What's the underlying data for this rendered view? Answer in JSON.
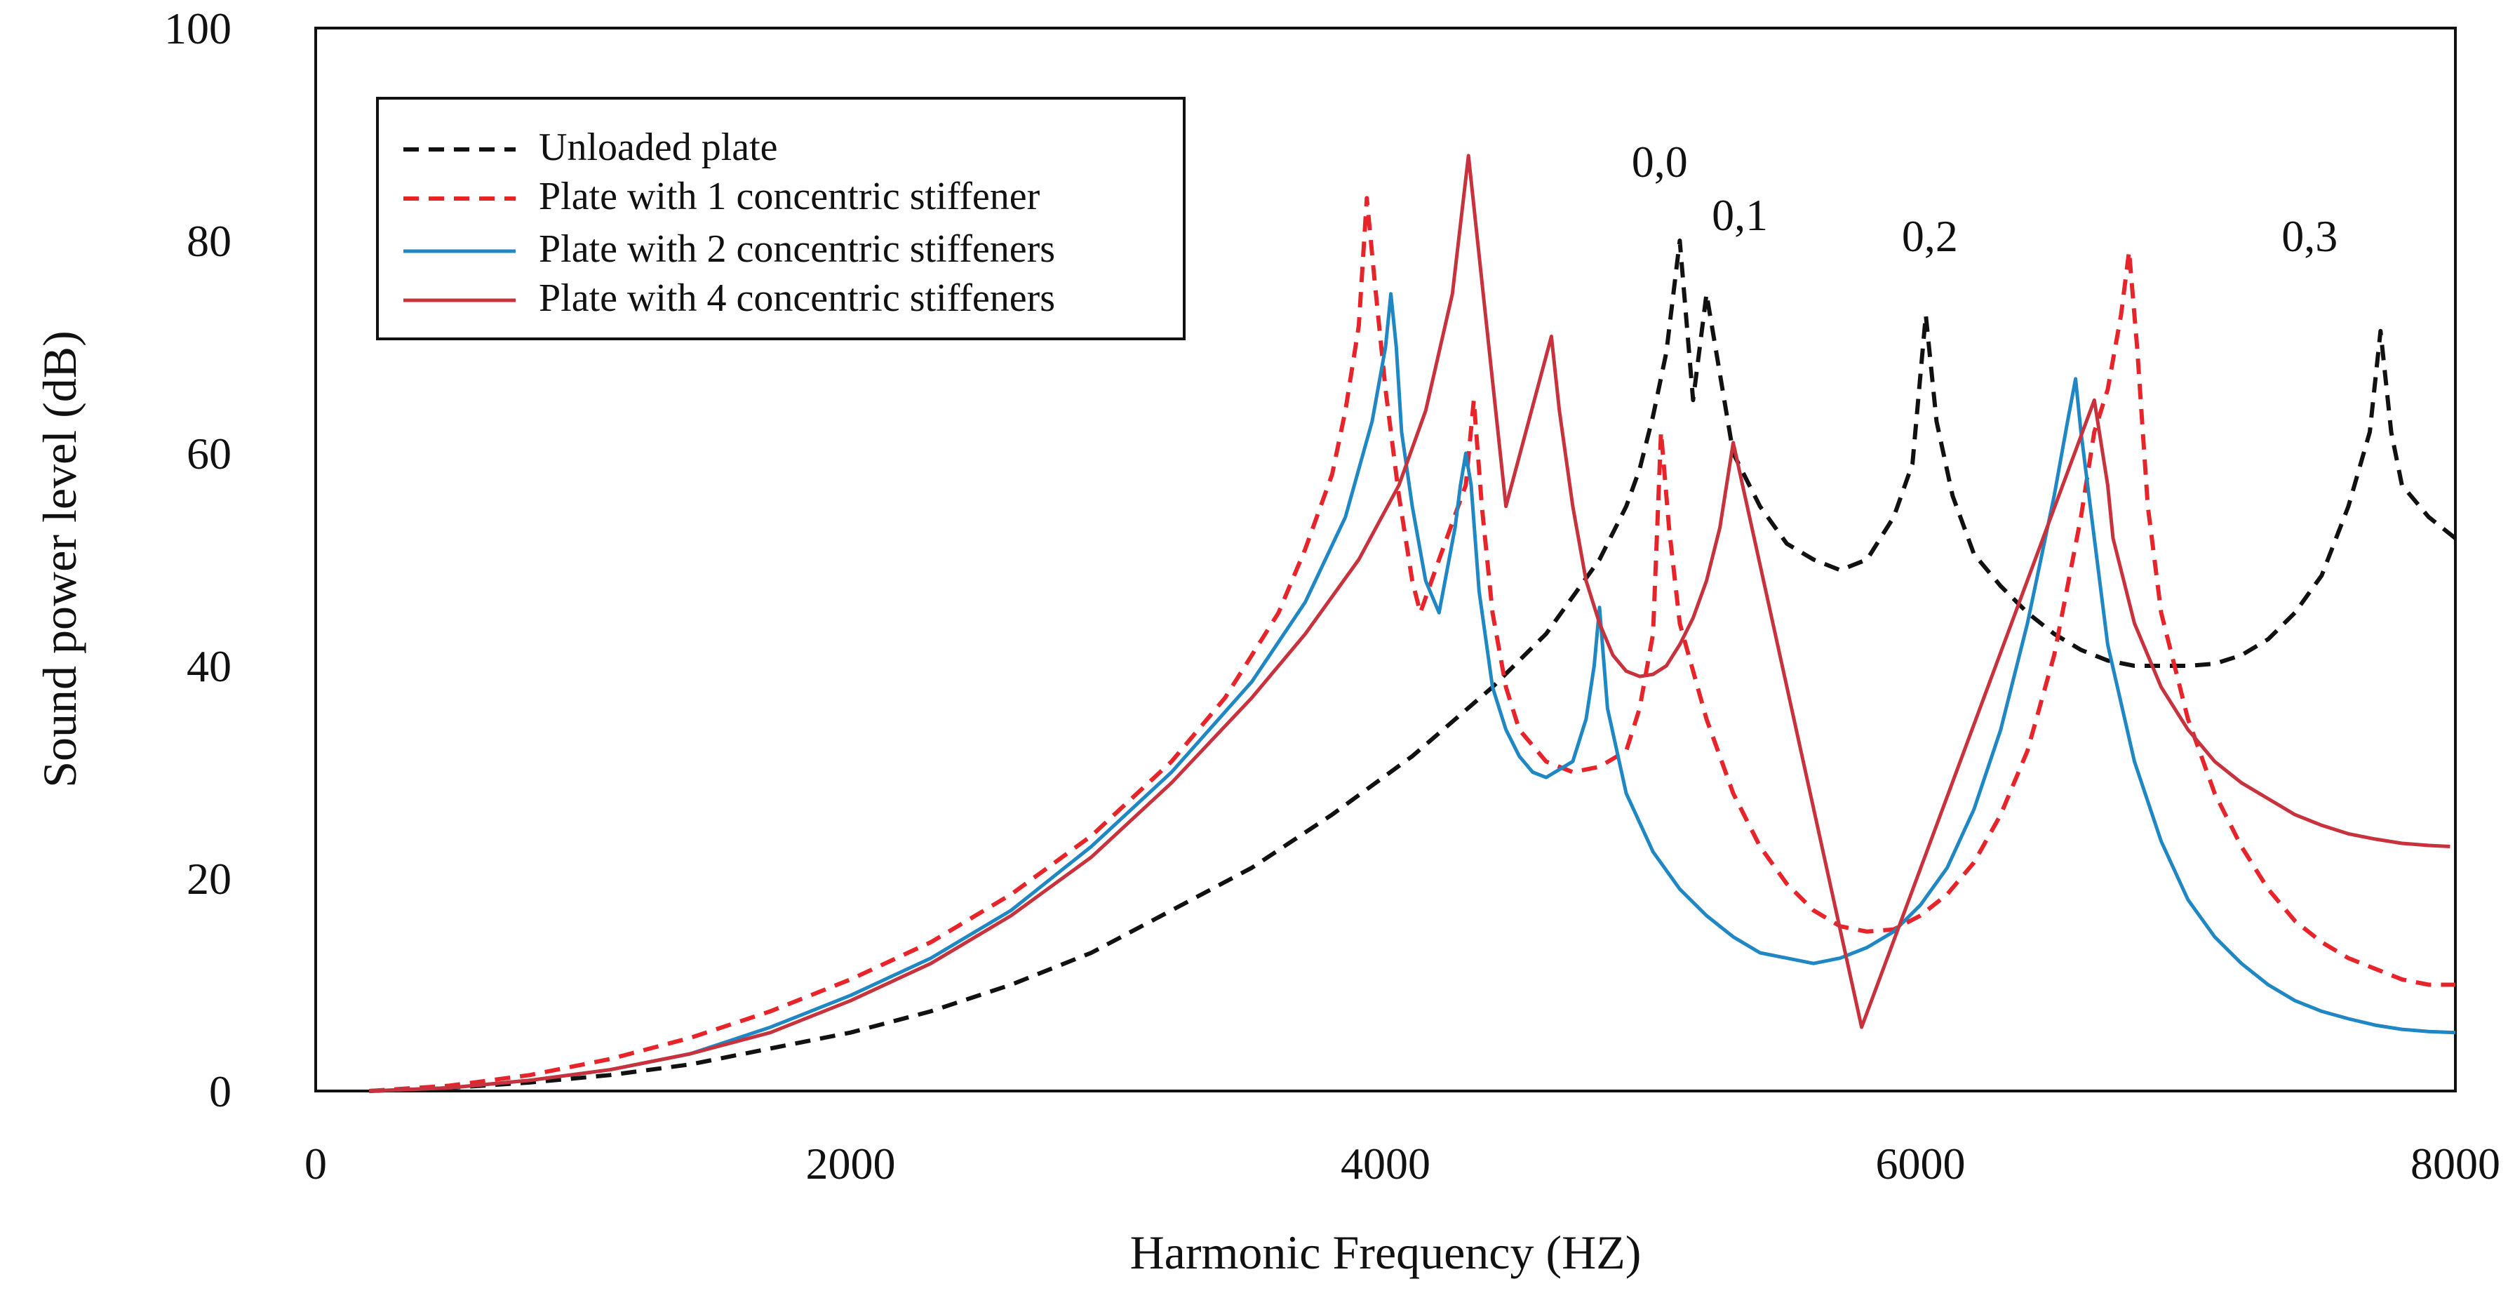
{
  "chart_data": {
    "type": "line",
    "title": "",
    "xlabel": "Harmonic Frequency (HZ)",
    "ylabel": "Sound power level (dB)",
    "xlim": [
      0,
      8000
    ],
    "ylim": [
      0,
      100
    ],
    "xticks": [
      0,
      2000,
      4000,
      6000,
      8000
    ],
    "yticks": [
      0,
      20,
      40,
      60,
      80,
      100
    ],
    "xtick_labels": [
      "0",
      "2000",
      "4000",
      "6000",
      "8000"
    ],
    "ytick_labels": [
      "0",
      "20",
      "40",
      "60",
      "80",
      "100"
    ],
    "grid": false,
    "legend_position": "top-left",
    "series": [
      {
        "name": "Unloaded plate",
        "color": "#111111",
        "style": "dashed",
        "x": [
          200,
          500,
          800,
          1100,
          1400,
          1700,
          2000,
          2300,
          2600,
          2900,
          3200,
          3500,
          3800,
          4100,
          4400,
          4600,
          4700,
          4800,
          4900,
          4950,
          5000,
          5050,
          5100,
          5150,
          5200,
          5300,
          5400,
          5500,
          5600,
          5700,
          5800,
          5900,
          5970,
          6020,
          6060,
          6120,
          6200,
          6300,
          6400,
          6500,
          6600,
          6700,
          6800,
          6900,
          7000,
          7100,
          7200,
          7300,
          7400,
          7500,
          7600,
          7680,
          7720,
          7760,
          7800,
          7900,
          8000
        ],
        "values": [
          0,
          0.3,
          0.8,
          1.5,
          2.5,
          4,
          5.5,
          7.5,
          10,
          13,
          17,
          21,
          26,
          31.5,
          38,
          43,
          46.5,
          50,
          55,
          58.5,
          63.5,
          69.5,
          80,
          65,
          75,
          60,
          55,
          51.5,
          50,
          49,
          50,
          54,
          59,
          73,
          63,
          56,
          50.5,
          47.5,
          45,
          43,
          41.5,
          40.5,
          40,
          40,
          40,
          40.2,
          41,
          42.5,
          45,
          48.5,
          55,
          62,
          71.5,
          62,
          57,
          54,
          52
        ]
      },
      {
        "name": "Plate with 1 concentric stiffener",
        "color": "#e8242b",
        "style": "dashed",
        "x": [
          200,
          500,
          800,
          1100,
          1400,
          1700,
          2000,
          2300,
          2600,
          2900,
          3200,
          3400,
          3600,
          3700,
          3800,
          3850,
          3900,
          3930,
          3960,
          4000,
          4050,
          4100,
          4130,
          4200,
          4300,
          4330,
          4360,
          4400,
          4450,
          4500,
          4600,
          4700,
          4800,
          4900,
          4950,
          5000,
          5030,
          5060,
          5100,
          5200,
          5300,
          5400,
          5500,
          5600,
          5700,
          5800,
          5900,
          6000,
          6100,
          6200,
          6300,
          6400,
          6500,
          6600,
          6650,
          6700,
          6750,
          6780,
          6810,
          6850,
          6900,
          7000,
          7100,
          7200,
          7300,
          7400,
          7500,
          7600,
          7700,
          7800,
          7900,
          8000
        ],
        "values": [
          0,
          0.5,
          1.5,
          3,
          5,
          7.5,
          10.5,
          14,
          18.5,
          24,
          31,
          37,
          45,
          51,
          58,
          64,
          72,
          84,
          76,
          66,
          56,
          48,
          45,
          50,
          57,
          65,
          55,
          45,
          38,
          34,
          31,
          30,
          30.5,
          32,
          36,
          43,
          62,
          53,
          44,
          35,
          28,
          23,
          19.5,
          17,
          15.5,
          15,
          15.2,
          16.5,
          18.5,
          21.5,
          26,
          32,
          41,
          54,
          62,
          66,
          73,
          79,
          70,
          55,
          45,
          35,
          28,
          23,
          19,
          16,
          14,
          12.5,
          11.5,
          10.5,
          10,
          10
        ]
      },
      {
        "name": "Plate with 2 concentric stiffeners",
        "color": "#1e87c4",
        "style": "solid",
        "x": [
          200,
          500,
          800,
          1100,
          1400,
          1700,
          2000,
          2300,
          2600,
          2900,
          3200,
          3500,
          3700,
          3850,
          3950,
          4000,
          4020,
          4040,
          4060,
          4100,
          4150,
          4200,
          4260,
          4280,
          4300,
          4320,
          4350,
          4400,
          4450,
          4500,
          4550,
          4600,
          4700,
          4750,
          4780,
          4800,
          4830,
          4900,
          5000,
          5100,
          5200,
          5300,
          5400,
          5500,
          5600,
          5700,
          5800,
          5900,
          6000,
          6100,
          6200,
          6300,
          6400,
          6500,
          6550,
          6580,
          6600,
          6650,
          6700,
          6800,
          6900,
          7000,
          7100,
          7200,
          7300,
          7400,
          7500,
          7600,
          7700,
          7800,
          7900,
          8000
        ],
        "values": [
          0,
          0.3,
          1,
          2,
          3.5,
          6,
          9,
          12.5,
          17,
          23,
          30,
          38.5,
          46,
          54,
          63,
          70,
          75,
          70,
          62,
          55,
          48,
          45,
          53,
          57,
          60,
          57,
          47,
          38,
          34,
          31.5,
          30,
          29.5,
          31,
          35,
          40,
          45.5,
          36,
          28,
          22.5,
          19,
          16.5,
          14.5,
          13,
          12.5,
          12,
          12.5,
          13.5,
          15,
          17.5,
          21,
          26.5,
          34,
          44,
          56,
          63,
          67,
          62,
          52,
          42,
          31,
          23.5,
          18,
          14.5,
          12,
          10,
          8.5,
          7.5,
          6.8,
          6.2,
          5.8,
          5.6,
          5.5
        ]
      },
      {
        "name": "Plate with 4 concentric stiffeners",
        "color": "#c8323c",
        "style": "solid",
        "x": [
          200,
          500,
          800,
          1100,
          1400,
          1700,
          2000,
          2300,
          2600,
          2900,
          3200,
          3500,
          3700,
          3900,
          4050,
          4150,
          4250,
          4310,
          4450,
          4620,
          4650,
          4700,
          4750,
          4800,
          4850,
          4900,
          4950,
          5000,
          5050,
          5100,
          5150,
          5200,
          5250,
          5300,
          5780,
          6650,
          6700,
          6720,
          6760,
          6800,
          6900,
          7000,
          7100,
          7200,
          7300,
          7400,
          7500,
          7600,
          7700,
          7800,
          7900,
          7980
        ],
        "values": [
          0,
          0.3,
          1,
          2,
          3.5,
          5.5,
          8.5,
          12,
          16.5,
          22,
          29,
          37,
          43,
          50,
          57,
          64,
          75,
          88,
          55,
          71,
          64,
          55,
          48,
          44,
          41,
          39.5,
          39,
          39.2,
          40,
          42,
          44.5,
          48,
          53,
          61,
          6,
          65,
          57,
          52,
          48,
          44,
          38,
          34,
          31,
          29,
          27.5,
          26,
          25,
          24.2,
          23.7,
          23.3,
          23.1,
          23
        ]
      }
    ],
    "annotations": [
      {
        "text": "0,0",
        "x": 4920,
        "y": 86
      },
      {
        "text": "0,1",
        "x": 5220,
        "y": 81
      },
      {
        "text": "0,2",
        "x": 5930,
        "y": 79
      },
      {
        "text": "0,3",
        "x": 7350,
        "y": 79
      }
    ]
  }
}
